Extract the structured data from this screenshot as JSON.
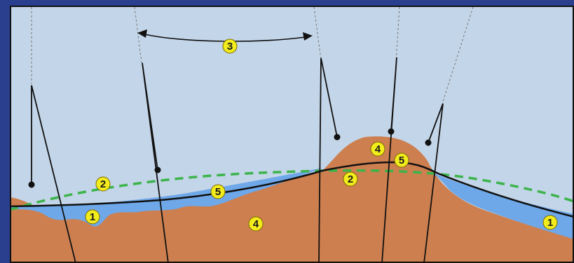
{
  "colors": {
    "sky": "#c3d5e8",
    "terrain": "#cd7f4f",
    "terrain_light": "#d9955f",
    "water": "#6ea8e8",
    "geoid": "#3cb44b",
    "surface_line": "#111111",
    "marker_fill": "#f3ec1c",
    "frame_border": "#101010",
    "background": "#2b3f8f"
  },
  "markers": [
    {
      "id": "marker-1-left",
      "label": "1"
    },
    {
      "id": "marker-1-right",
      "label": "1"
    },
    {
      "id": "marker-2-left",
      "label": "2"
    },
    {
      "id": "marker-2-right",
      "label": "2"
    },
    {
      "id": "marker-3",
      "label": "3"
    },
    {
      "id": "marker-4-bottom",
      "label": "4"
    },
    {
      "id": "marker-4-top",
      "label": "4"
    },
    {
      "id": "marker-5-left",
      "label": "5"
    },
    {
      "id": "marker-5-right",
      "label": "5"
    }
  ]
}
